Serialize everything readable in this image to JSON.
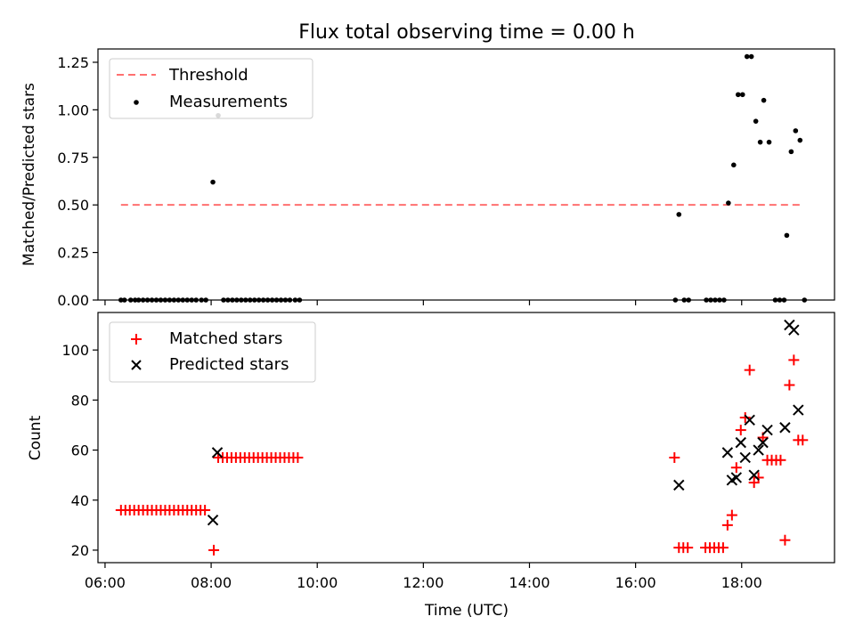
{
  "chart_data": [
    {
      "type": "scatter",
      "title": "Flux total observing time = 0.00 h",
      "xlabel": "",
      "ylabel": "Matched/Predicted stars",
      "xlim": [
        "05:52",
        "19:45"
      ],
      "ylim": [
        0,
        1.32
      ],
      "xticks": [
        "06:00",
        "08:00",
        "10:00",
        "12:00",
        "14:00",
        "16:00",
        "18:00"
      ],
      "yticks": [
        "0.00",
        "0.25",
        "0.50",
        "0.75",
        "1.00",
        "1.25"
      ],
      "legend_position": "upper left",
      "threshold": {
        "name": "Threshold",
        "value": 0.5,
        "x_start": "06:18",
        "x_end": "19:10",
        "color": "#ff7070",
        "style": "dashed"
      },
      "series": [
        {
          "name": "Measurements",
          "marker": "dot",
          "color": "#000000",
          "points": [
            [
              "06:18",
              0
            ],
            [
              "06:22",
              0
            ],
            [
              "06:29",
              0
            ],
            [
              "06:34",
              0
            ],
            [
              "06:38",
              0
            ],
            [
              "06:43",
              0
            ],
            [
              "06:48",
              0
            ],
            [
              "06:53",
              0
            ],
            [
              "06:58",
              0
            ],
            [
              "07:03",
              0
            ],
            [
              "07:08",
              0
            ],
            [
              "07:13",
              0
            ],
            [
              "07:18",
              0
            ],
            [
              "07:23",
              0
            ],
            [
              "07:28",
              0
            ],
            [
              "07:33",
              0
            ],
            [
              "07:38",
              0
            ],
            [
              "07:43",
              0
            ],
            [
              "07:49",
              0
            ],
            [
              "07:54",
              0
            ],
            [
              "08:02",
              0.62
            ],
            [
              "08:08",
              0.97
            ],
            [
              "08:14",
              0
            ],
            [
              "08:19",
              0
            ],
            [
              "08:24",
              0
            ],
            [
              "08:29",
              0
            ],
            [
              "08:34",
              0
            ],
            [
              "08:39",
              0
            ],
            [
              "08:44",
              0
            ],
            [
              "08:49",
              0
            ],
            [
              "08:54",
              0
            ],
            [
              "08:59",
              0
            ],
            [
              "09:04",
              0
            ],
            [
              "09:09",
              0
            ],
            [
              "09:14",
              0
            ],
            [
              "09:19",
              0
            ],
            [
              "09:24",
              0
            ],
            [
              "09:29",
              0
            ],
            [
              "09:35",
              0
            ],
            [
              "09:40",
              0
            ],
            [
              "16:45",
              0
            ],
            [
              "16:49",
              0.45
            ],
            [
              "16:55",
              0
            ],
            [
              "17:00",
              0
            ],
            [
              "17:20",
              0
            ],
            [
              "17:25",
              0
            ],
            [
              "17:30",
              0
            ],
            [
              "17:35",
              0
            ],
            [
              "17:40",
              0
            ],
            [
              "17:45",
              0.51
            ],
            [
              "17:51",
              0.71
            ],
            [
              "17:56",
              1.08
            ],
            [
              "18:01",
              1.08
            ],
            [
              "18:06",
              1.28
            ],
            [
              "18:11",
              1.28
            ],
            [
              "18:16",
              0.94
            ],
            [
              "18:21",
              0.83
            ],
            [
              "18:25",
              1.05
            ],
            [
              "18:31",
              0.83
            ],
            [
              "18:38",
              0
            ],
            [
              "18:43",
              0
            ],
            [
              "18:48",
              0
            ],
            [
              "18:51",
              0.34
            ],
            [
              "18:56",
              0.78
            ],
            [
              "19:01",
              0.89
            ],
            [
              "19:06",
              0.84
            ],
            [
              "19:11",
              0
            ]
          ]
        }
      ]
    },
    {
      "type": "scatter",
      "title": "",
      "xlabel": "Time (UTC)",
      "ylabel": "Count",
      "xlim": [
        "05:52",
        "19:45"
      ],
      "ylim": [
        15,
        115
      ],
      "xticks": [
        "06:00",
        "08:00",
        "10:00",
        "12:00",
        "14:00",
        "16:00",
        "18:00"
      ],
      "yticks": [
        "20",
        "40",
        "60",
        "80",
        "100"
      ],
      "legend_position": "upper left",
      "series": [
        {
          "name": "Matched stars",
          "marker": "plus",
          "color": "#ff0000",
          "points": [
            [
              "06:18",
              36
            ],
            [
              "06:23",
              36
            ],
            [
              "06:28",
              36
            ],
            [
              "06:33",
              36
            ],
            [
              "06:38",
              36
            ],
            [
              "06:43",
              36
            ],
            [
              "06:48",
              36
            ],
            [
              "06:53",
              36
            ],
            [
              "06:58",
              36
            ],
            [
              "07:03",
              36
            ],
            [
              "07:08",
              36
            ],
            [
              "07:13",
              36
            ],
            [
              "07:18",
              36
            ],
            [
              "07:23",
              36
            ],
            [
              "07:28",
              36
            ],
            [
              "07:33",
              36
            ],
            [
              "07:38",
              36
            ],
            [
              "07:43",
              36
            ],
            [
              "07:48",
              36
            ],
            [
              "07:53",
              36
            ],
            [
              "08:03",
              20
            ],
            [
              "08:08",
              57
            ],
            [
              "08:13",
              57
            ],
            [
              "08:18",
              57
            ],
            [
              "08:23",
              57
            ],
            [
              "08:28",
              57
            ],
            [
              "08:33",
              57
            ],
            [
              "08:38",
              57
            ],
            [
              "08:43",
              57
            ],
            [
              "08:48",
              57
            ],
            [
              "08:53",
              57
            ],
            [
              "08:58",
              57
            ],
            [
              "09:03",
              57
            ],
            [
              "09:08",
              57
            ],
            [
              "09:13",
              57
            ],
            [
              "09:18",
              57
            ],
            [
              "09:23",
              57
            ],
            [
              "09:28",
              57
            ],
            [
              "09:33",
              57
            ],
            [
              "09:38",
              57
            ],
            [
              "16:44",
              57
            ],
            [
              "16:49",
              21
            ],
            [
              "16:54",
              21
            ],
            [
              "16:59",
              21
            ],
            [
              "17:19",
              21
            ],
            [
              "17:24",
              21
            ],
            [
              "17:29",
              21
            ],
            [
              "17:34",
              21
            ],
            [
              "17:39",
              21
            ],
            [
              "17:44",
              30
            ],
            [
              "17:49",
              34
            ],
            [
              "17:54",
              53
            ],
            [
              "17:59",
              68
            ],
            [
              "18:04",
              73
            ],
            [
              "18:09",
              92
            ],
            [
              "18:14",
              47
            ],
            [
              "18:19",
              49
            ],
            [
              "18:24",
              65
            ],
            [
              "18:29",
              56
            ],
            [
              "18:34",
              56
            ],
            [
              "18:39",
              56
            ],
            [
              "18:44",
              56
            ],
            [
              "18:49",
              24
            ],
            [
              "18:54",
              86
            ],
            [
              "18:59",
              96
            ],
            [
              "19:04",
              64
            ],
            [
              "19:09",
              64
            ]
          ]
        },
        {
          "name": "Predicted stars",
          "marker": "x",
          "color": "#000000",
          "points": [
            [
              "08:02",
              32
            ],
            [
              "08:07",
              59
            ],
            [
              "16:49",
              46
            ],
            [
              "17:44",
              59
            ],
            [
              "17:49",
              48
            ],
            [
              "17:54",
              49
            ],
            [
              "17:59",
              63
            ],
            [
              "18:04",
              57
            ],
            [
              "18:09",
              72
            ],
            [
              "18:14",
              50
            ],
            [
              "18:19",
              60
            ],
            [
              "18:24",
              63
            ],
            [
              "18:29",
              68
            ],
            [
              "18:49",
              69
            ],
            [
              "18:54",
              110
            ],
            [
              "18:59",
              108
            ],
            [
              "19:04",
              76
            ]
          ]
        }
      ]
    }
  ]
}
